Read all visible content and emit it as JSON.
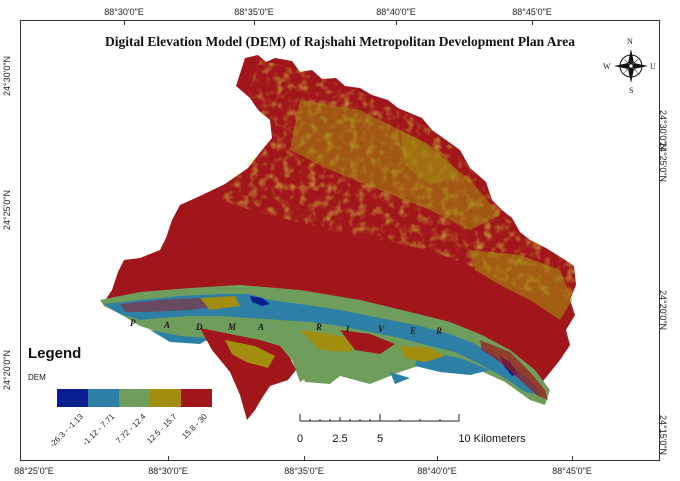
{
  "map": {
    "title": "Digital Elevation Model (DEM) of Rajshahi Metropolitan Development Plan Area",
    "river_letters": [
      "P",
      "A",
      "D",
      "M",
      "A",
      "R",
      "I",
      "V",
      "E",
      "R"
    ]
  },
  "coords": {
    "top": [
      "88°30'0\"E",
      "88°35'0\"E",
      "88°40'0\"E",
      "88°45'0\"E"
    ],
    "bottom": [
      "88°25'0\"E",
      "88°30'0\"E",
      "88°35'0\"E",
      "88°40'0\"E",
      "88°45'0\"E"
    ],
    "left": [
      "24°30'0\"N",
      "24°25'0\"N",
      "24°20'0\"N"
    ],
    "right": [
      "24°30'0\"N",
      "24°25'0\"N",
      "24°20'0\"N",
      "24°15'0\"N"
    ]
  },
  "compass": {
    "n": "N",
    "s": "S",
    "e": "U",
    "w": "W"
  },
  "legend": {
    "title": "Legend",
    "subtitle": "DEM",
    "classes": [
      {
        "label": "-26.3 - -1.13",
        "color": "#0a1f8f"
      },
      {
        "label": "-1.12 - 7.71",
        "color": "#2e7fa6"
      },
      {
        "label": "7.72 - 12.4",
        "color": "#6f9e5c"
      },
      {
        "label": "12.5 - 15.7",
        "color": "#a38d0f"
      },
      {
        "label": "15.8 - 30",
        "color": "#a1161a"
      }
    ]
  },
  "scalebar": {
    "ticks": [
      "0",
      "2.5",
      "5",
      "10 Kilometers"
    ]
  }
}
